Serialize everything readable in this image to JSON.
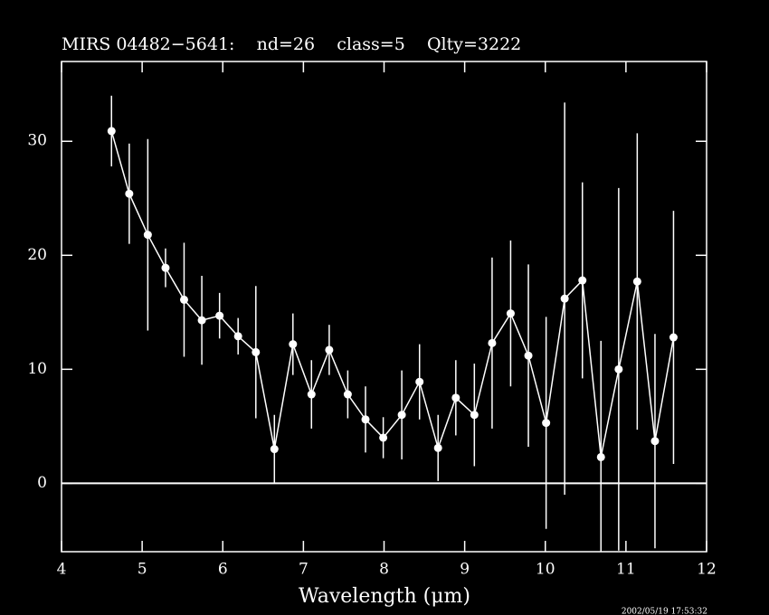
{
  "chart_data": {
    "type": "line",
    "title": "MIRS 04482−5641:    nd=26    class=5    Qlty=3222",
    "x_label": "Wavelength (μm)",
    "timestamp": "2002/05/19 17:53:32",
    "color": "#ffffff",
    "x": [
      4.62,
      4.84,
      5.07,
      5.29,
      5.52,
      5.74,
      5.96,
      6.19,
      6.41,
      6.64,
      6.87,
      7.1,
      7.32,
      7.55,
      7.77,
      7.99,
      8.22,
      8.44,
      8.67,
      8.89,
      9.12,
      9.34,
      9.57,
      9.79,
      10.01,
      10.24,
      10.46,
      10.69,
      10.91,
      11.14,
      11.36,
      11.59
    ],
    "values": [
      30.9,
      25.4,
      21.8,
      18.9,
      16.1,
      14.3,
      14.7,
      12.9,
      11.5,
      3.0,
      12.2,
      7.8,
      11.7,
      7.8,
      5.6,
      4.0,
      6.0,
      8.9,
      3.1,
      7.5,
      6.0,
      12.3,
      14.9,
      11.2,
      5.3,
      16.2,
      17.8,
      2.3,
      10.0,
      17.7,
      3.7,
      12.8
    ],
    "errors": [
      3.1,
      4.4,
      8.4,
      1.7,
      5.0,
      3.9,
      2.0,
      1.6,
      5.8,
      3.0,
      2.7,
      3.0,
      2.2,
      2.1,
      2.9,
      1.8,
      3.9,
      3.3,
      2.9,
      3.3,
      4.5,
      7.5,
      6.4,
      8.0,
      9.3,
      17.2,
      8.6,
      10.2,
      15.9,
      13.0,
      9.4,
      11.1
    ],
    "xlim": [
      4,
      12
    ],
    "xticks": [
      4,
      5,
      6,
      7,
      8,
      9,
      10,
      11,
      12
    ],
    "ylim": [
      -6,
      37
    ],
    "yticks": [
      0,
      10,
      20,
      30
    ],
    "hline": 0
  }
}
